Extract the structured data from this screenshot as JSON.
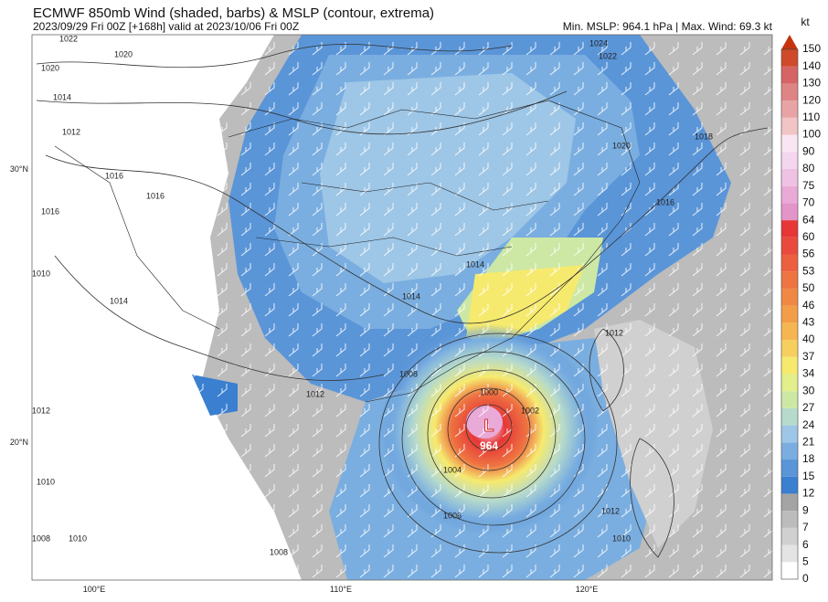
{
  "header": {
    "title": "ECMWF 850mb Wind (shaded, barbs) & MSLP (contour, extrema)",
    "subtitle": "2023/09/29 Fri 00Z [+168h] valid at 2023/10/06 Fri 00Z",
    "stats": "Min. MSLP: 964.1 hPa | Max. Wind: 69.3 kt"
  },
  "colorbar": {
    "unit": "kt",
    "levels": [
      0,
      5,
      6,
      7,
      9,
      12,
      15,
      18,
      21,
      24,
      27,
      30,
      34,
      37,
      40,
      43,
      46,
      50,
      53,
      56,
      60,
      64,
      70,
      75,
      80,
      90,
      100,
      110,
      120,
      130,
      140,
      150
    ],
    "colors": [
      "#ffffff",
      "#e4e4e4",
      "#d0d0d0",
      "#bcbcbc",
      "#a4a4a4",
      "#3a7fd0",
      "#5a95d8",
      "#7aaee0",
      "#9ec6e6",
      "#b6dacb",
      "#cce8a4",
      "#e2ef8a",
      "#f6ea6e",
      "#f7cf5e",
      "#f5b652",
      "#f29d48",
      "#f08844",
      "#ee7442",
      "#ec6040",
      "#ea4a3e",
      "#e63636",
      "#e394c9",
      "#e9aad8",
      "#efc2e4",
      "#f4d6ee",
      "#f8e6f3",
      "#f1c4c6",
      "#e8a4a4",
      "#df8484",
      "#d76464",
      "#cf4a2a"
    ],
    "extend_color": "#c5330f"
  },
  "map": {
    "lat_labels": [
      "30°N",
      "20°N"
    ],
    "lon_labels": [
      "100°E",
      "110°E",
      "120°E"
    ],
    "contour_labels": [
      "1022",
      "1020",
      "1020",
      "1014",
      "1012",
      "1016",
      "1016",
      "1016",
      "1010",
      "1014",
      "1012",
      "1010",
      "1008",
      "1024",
      "1022",
      "1020",
      "1018",
      "1016",
      "1014",
      "1014",
      "1008",
      "1000",
      "1002",
      "1004",
      "1006",
      "1012",
      "1012",
      "1010",
      "1008",
      "1010",
      "1012"
    ],
    "low_marker": "L",
    "low_value": "964"
  }
}
